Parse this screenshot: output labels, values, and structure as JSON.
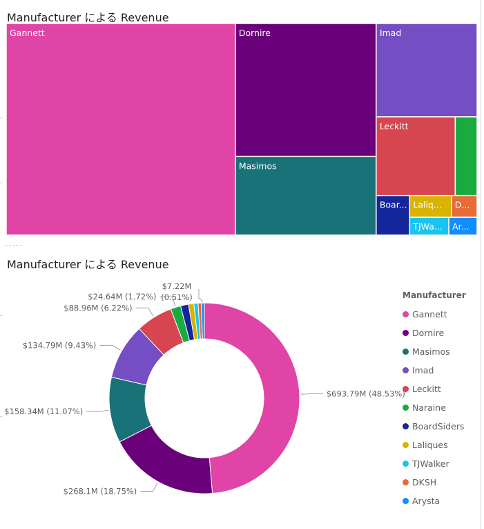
{
  "charts": [
    {
      "title": "Manufacturer による Revenue"
    },
    {
      "title": "Manufacturer による Revenue",
      "legend_title": "Manufacturer"
    }
  ],
  "colors": {
    "Gannett": "#e044a7",
    "Dornire": "#6b007b",
    "Masimos": "#197278",
    "Imad": "#744ec2",
    "Leckitt": "#d64550",
    "Naraine": "#1aab40",
    "BoardSiders": "#15259c",
    "Laliques": "#d9b300",
    "TJWalker": "#1ac4f0",
    "DKSH": "#e66c37",
    "Arysta": "#118dff"
  },
  "chart_data": [
    {
      "type": "treemap",
      "title": "Manufacturer による Revenue",
      "cells": [
        {
          "name": "Gannett",
          "label": "Gannett",
          "value": 693.79
        },
        {
          "name": "Dornire",
          "label": "Dornire",
          "value": 268.1
        },
        {
          "name": "Masimos",
          "label": "Masimos",
          "value": 158.34
        },
        {
          "name": "Imad",
          "label": "Imad",
          "value": 134.79
        },
        {
          "name": "Leckitt",
          "label": "Leckitt",
          "value": 88.96
        },
        {
          "name": "Naraine",
          "label": "",
          "value": 24.64
        },
        {
          "name": "BoardSiders",
          "label": "Boar...",
          "value": 19.0
        },
        {
          "name": "Laliques",
          "label": "Laliq...",
          "value": 13.0
        },
        {
          "name": "DKSH",
          "label": "D...",
          "value": 8.0
        },
        {
          "name": "TJWalker",
          "label": "TJWa...",
          "value": 10.0
        },
        {
          "name": "Arysta",
          "label": "Ar...",
          "value": 7.22
        }
      ]
    },
    {
      "type": "pie",
      "variant": "donut",
      "title": "Manufacturer による Revenue",
      "legend_title": "Manufacturer",
      "legend_position": "right",
      "slices": [
        {
          "name": "Gannett",
          "value": 693.79,
          "percent": 48.53
        },
        {
          "name": "Dornire",
          "value": 268.1,
          "percent": 18.75
        },
        {
          "name": "Masimos",
          "value": 158.34,
          "percent": 11.07
        },
        {
          "name": "Imad",
          "value": 134.79,
          "percent": 9.43
        },
        {
          "name": "Leckitt",
          "value": 88.96,
          "percent": 6.22
        },
        {
          "name": "Naraine",
          "value": 24.64,
          "percent": 1.72
        },
        {
          "name": "BoardSiders",
          "value": 19.0,
          "percent": 1.33
        },
        {
          "name": "Laliques",
          "value": 13.0,
          "percent": 0.91
        },
        {
          "name": "TJWalker",
          "value": 10.0,
          "percent": 0.7
        },
        {
          "name": "DKSH",
          "value": 8.0,
          "percent": 0.56
        },
        {
          "name": "Arysta",
          "value": 7.22,
          "percent": 0.51
        }
      ],
      "data_labels": [
        {
          "slice": "Gannett",
          "text": "$693.79M (48.53%)"
        },
        {
          "slice": "Dornire",
          "text": "$268.1M (18.75%)"
        },
        {
          "slice": "Masimos",
          "text": "$158.34M (11.07%)"
        },
        {
          "slice": "Imad",
          "text": "$134.79M (9.43%)"
        },
        {
          "slice": "Leckitt",
          "text": "$88.96M (6.22%)"
        },
        {
          "slice": "Naraine",
          "text": "$24.64M (1.72%)"
        },
        {
          "slice": "Arysta",
          "text": "$7.22M (0.51%)"
        }
      ]
    }
  ]
}
